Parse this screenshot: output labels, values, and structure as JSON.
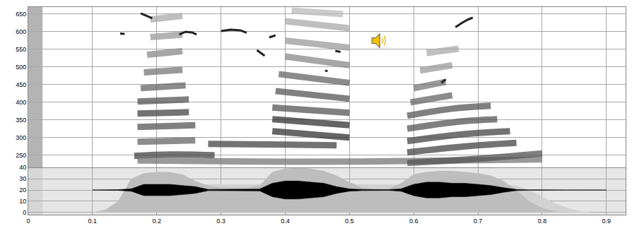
{
  "chart_data": {
    "type": "spectrogram",
    "xlim": [
      0,
      0.93
    ],
    "xticks": [
      0,
      0.1,
      0.2,
      0.3,
      0.4,
      0.5,
      0.6,
      0.7,
      0.8,
      0.9
    ],
    "grid": true,
    "spectrogram": {
      "ylim": [
        215,
        670
      ],
      "yticks": [
        250,
        300,
        350,
        400,
        450,
        500,
        550,
        600,
        650
      ],
      "bands": [
        {
          "x": [
            0.165,
            0.22,
            0.29
          ],
          "y": [
            248,
            252,
            250
          ],
          "color": "#444444"
        },
        {
          "x": [
            0.17,
            0.26
          ],
          "y": [
            288,
            292
          ],
          "color": "#666666"
        },
        {
          "x": [
            0.17,
            0.26
          ],
          "y": [
            330,
            335
          ],
          "color": "#555555"
        },
        {
          "x": [
            0.17,
            0.25
          ],
          "y": [
            368,
            372
          ],
          "color": "#444444"
        },
        {
          "x": [
            0.17,
            0.25
          ],
          "y": [
            402,
            408
          ],
          "color": "#555555"
        },
        {
          "x": [
            0.175,
            0.245
          ],
          "y": [
            440,
            448
          ],
          "color": "#666666"
        },
        {
          "x": [
            0.18,
            0.24
          ],
          "y": [
            485,
            492
          ],
          "color": "#777777"
        },
        {
          "x": [
            0.185,
            0.24
          ],
          "y": [
            535,
            545
          ],
          "color": "#888888"
        },
        {
          "x": [
            0.19,
            0.24
          ],
          "y": [
            585,
            592
          ],
          "color": "#999999"
        },
        {
          "x": [
            0.19,
            0.24
          ],
          "y": [
            635,
            645
          ],
          "color": "#aaaaaa"
        },
        {
          "x": [
            0.17,
            0.35,
            0.52,
            0.8
          ],
          "y": [
            235,
            232,
            232,
            238
          ],
          "color": "#777777"
        },
        {
          "x": [
            0.28,
            0.4,
            0.48
          ],
          "y": [
            282,
            280,
            278
          ],
          "color": "#444444"
        },
        {
          "x": [
            0.38,
            0.5
          ],
          "y": [
            318,
            300
          ],
          "color": "#333333"
        },
        {
          "x": [
            0.38,
            0.5
          ],
          "y": [
            352,
            335
          ],
          "color": "#333333"
        },
        {
          "x": [
            0.38,
            0.5
          ],
          "y": [
            385,
            370
          ],
          "color": "#555555"
        },
        {
          "x": [
            0.385,
            0.5
          ],
          "y": [
            432,
            410
          ],
          "color": "#555555"
        },
        {
          "x": [
            0.39,
            0.5
          ],
          "y": [
            480,
            455
          ],
          "color": "#666666"
        },
        {
          "x": [
            0.4,
            0.5
          ],
          "y": [
            530,
            505
          ],
          "color": "#888888"
        },
        {
          "x": [
            0.4,
            0.5
          ],
          "y": [
            575,
            555
          ],
          "color": "#999999"
        },
        {
          "x": [
            0.4,
            0.5
          ],
          "y": [
            630,
            610
          ],
          "color": "#aaaaaa"
        },
        {
          "x": [
            0.41,
            0.49
          ],
          "y": [
            660,
            650
          ],
          "color": "#bbbbbb"
        },
        {
          "x": [
            0.59,
            0.7,
            0.8
          ],
          "y": [
            228,
            240,
            255
          ],
          "color": "#555555"
        },
        {
          "x": [
            0.59,
            0.68,
            0.76
          ],
          "y": [
            258,
            275,
            285
          ],
          "color": "#444444"
        },
        {
          "x": [
            0.59,
            0.68,
            0.75
          ],
          "y": [
            290,
            310,
            318
          ],
          "color": "#444444"
        },
        {
          "x": [
            0.59,
            0.67,
            0.73
          ],
          "y": [
            325,
            345,
            352
          ],
          "color": "#555555"
        },
        {
          "x": [
            0.59,
            0.66,
            0.72
          ],
          "y": [
            362,
            382,
            390
          ],
          "color": "#555555"
        },
        {
          "x": [
            0.595,
            0.66
          ],
          "y": [
            400,
            420
          ],
          "color": "#666666"
        },
        {
          "x": [
            0.6,
            0.65
          ],
          "y": [
            440,
            458
          ],
          "color": "#777777"
        },
        {
          "x": [
            0.61,
            0.66
          ],
          "y": [
            490,
            505
          ],
          "color": "#999999"
        },
        {
          "x": [
            0.62,
            0.67
          ],
          "y": [
            540,
            552
          ],
          "color": "#aaaaaa"
        }
      ]
    },
    "pitch": {
      "color": "#222222",
      "segments": [
        {
          "x": [
            0.143,
            0.15
          ],
          "y": [
            595,
            594
          ]
        },
        {
          "x": [
            0.175,
            0.185,
            0.193
          ],
          "y": [
            652,
            645,
            638
          ]
        },
        {
          "x": [
            0.235,
            0.245,
            0.255,
            0.262
          ],
          "y": [
            592,
            600,
            598,
            592
          ]
        },
        {
          "x": [
            0.3,
            0.315,
            0.33,
            0.34
          ],
          "y": [
            602,
            606,
            604,
            597
          ]
        },
        {
          "x": [
            0.356,
            0.363,
            0.368
          ],
          "y": [
            548,
            538,
            532
          ]
        },
        {
          "x": [
            0.375,
            0.385
          ],
          "y": [
            584,
            590
          ]
        },
        {
          "x": [
            0.462,
            0.466
          ],
          "y": [
            490,
            488
          ]
        },
        {
          "x": [
            0.478,
            0.486
          ],
          "y": [
            546,
            543
          ]
        },
        {
          "x": [
            0.643,
            0.65
          ],
          "y": [
            455,
            465
          ]
        },
        {
          "x": [
            0.665,
            0.675,
            0.685,
            0.692
          ],
          "y": [
            613,
            625,
            635,
            640
          ]
        }
      ]
    },
    "waveform": {
      "ylim": [
        -2,
        40
      ],
      "yticks": [
        0,
        10,
        20,
        30,
        40
      ],
      "x": [
        0.1,
        0.12,
        0.14,
        0.16,
        0.18,
        0.2,
        0.22,
        0.24,
        0.26,
        0.28,
        0.3,
        0.32,
        0.34,
        0.36,
        0.38,
        0.4,
        0.42,
        0.44,
        0.46,
        0.48,
        0.5,
        0.52,
        0.54,
        0.56,
        0.58,
        0.6,
        0.62,
        0.64,
        0.66,
        0.68,
        0.7,
        0.72,
        0.74,
        0.76,
        0.78,
        0.8,
        0.82,
        0.84,
        0.86,
        0.88,
        0.9
      ],
      "envelope_outer": [
        0,
        3,
        10,
        20,
        24,
        25,
        25,
        25,
        25,
        25,
        25,
        25,
        25,
        25,
        26,
        26,
        26,
        26,
        26,
        26,
        26,
        25,
        25,
        25,
        25,
        26,
        26,
        26,
        26,
        26,
        26,
        25,
        25,
        24,
        20,
        14,
        8,
        4,
        1,
        0,
        0
      ],
      "envelope_outer_color": "#d2d2d2",
      "envelope": [
        0,
        2,
        10,
        30,
        35,
        36,
        36,
        34,
        28,
        24,
        22,
        22,
        22,
        24,
        36,
        39,
        40,
        39,
        37,
        33,
        27,
        22,
        21,
        21,
        26,
        34,
        36,
        37,
        37,
        36,
        35,
        33,
        28,
        20,
        10,
        4,
        1,
        0,
        0,
        0,
        0
      ],
      "envelope_color": "#bdbdbd",
      "upper": [
        20,
        20,
        20.3,
        21,
        25,
        25,
        25,
        24,
        23,
        20.5,
        20.5,
        20.5,
        20.5,
        20.8,
        26,
        28,
        28,
        27,
        26,
        23,
        21,
        20.5,
        20.3,
        20.3,
        21,
        25,
        27,
        27,
        26,
        26,
        25,
        24,
        22,
        20.5,
        20.2,
        20,
        20,
        20,
        20,
        20,
        20
      ],
      "lower": [
        20,
        20,
        19.7,
        19,
        15,
        15,
        15,
        16,
        17,
        19.5,
        19.5,
        19.5,
        19.5,
        19.2,
        14,
        12,
        12,
        13,
        14,
        17,
        19,
        19.5,
        19.7,
        19.7,
        19,
        15,
        13,
        13,
        14,
        14,
        15,
        16,
        18,
        19.5,
        19.8,
        20,
        20,
        20,
        20,
        20,
        20
      ],
      "color": "#000000"
    }
  }
}
